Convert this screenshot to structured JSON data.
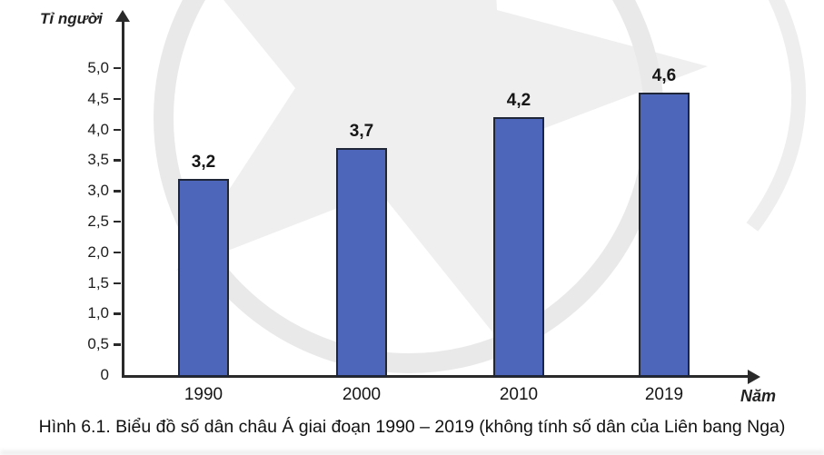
{
  "figure": {
    "caption": "Hình 6.1. Biểu đồ số dân châu Á giai đoạn 1990 – 2019 (không tính số dân của Liên bang Nga)"
  },
  "chart_data": {
    "type": "bar",
    "title": "",
    "ylabel": "Tỉ người",
    "xlabel": "Năm",
    "categories": [
      "1990",
      "2000",
      "2010",
      "2019"
    ],
    "values": [
      3.2,
      3.7,
      4.2,
      4.6
    ],
    "value_labels": [
      "3,2",
      "3,7",
      "4,2",
      "4,6"
    ],
    "y_ticks": [
      {
        "label": "5,0",
        "value": 5.0
      },
      {
        "label": "4,5",
        "value": 4.5
      },
      {
        "label": "4,0",
        "value": 4.0
      },
      {
        "label": "3,5",
        "value": 3.5
      },
      {
        "label": "3,0",
        "value": 3.0
      },
      {
        "label": "2,5",
        "value": 2.5
      },
      {
        "label": "2,0",
        "value": 2.0
      },
      {
        "label": "1,5",
        "value": 1.5
      },
      {
        "label": "1,0",
        "value": 1.0
      },
      {
        "label": "0,5",
        "value": 0.5
      },
      {
        "label": "0",
        "value": 0
      }
    ],
    "ylim": [
      0,
      5.5
    ],
    "grid": false,
    "legend": null,
    "colors": {
      "bar_fill": "#4e66ba",
      "bar_border": "#1e2638",
      "axis": "#2a2a2a",
      "text": "#161616",
      "watermark": "#ececec"
    }
  }
}
